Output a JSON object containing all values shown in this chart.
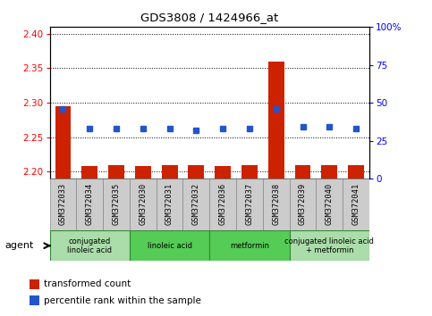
{
  "title": "GDS3808 / 1424966_at",
  "samples": [
    "GSM372033",
    "GSM372034",
    "GSM372035",
    "GSM372030",
    "GSM372031",
    "GSM372032",
    "GSM372036",
    "GSM372037",
    "GSM372038",
    "GSM372039",
    "GSM372040",
    "GSM372041"
  ],
  "transformed_count": [
    2.295,
    2.208,
    2.21,
    2.208,
    2.209,
    2.209,
    2.208,
    2.21,
    2.36,
    2.209,
    2.21,
    2.209
  ],
  "percentile_rank": [
    46,
    33,
    33,
    33,
    33,
    32,
    33,
    33,
    46,
    34,
    34,
    33
  ],
  "ylim_left": [
    2.19,
    2.41
  ],
  "ylim_right": [
    0,
    100
  ],
  "yticks_left": [
    2.2,
    2.25,
    2.3,
    2.35,
    2.4
  ],
  "yticks_right": [
    0,
    25,
    50,
    75,
    100
  ],
  "groups": [
    {
      "label": "conjugated\nlinoleic acid",
      "start": 0,
      "end": 3,
      "color": "#aaddaa"
    },
    {
      "label": "linoleic acid",
      "start": 3,
      "end": 6,
      "color": "#55cc55"
    },
    {
      "label": "metformin",
      "start": 6,
      "end": 9,
      "color": "#55cc55"
    },
    {
      "label": "conjugated linoleic acid\n+ metformin",
      "start": 9,
      "end": 12,
      "color": "#aaddaa"
    }
  ],
  "bar_color": "#cc2200",
  "dot_color": "#2255cc",
  "grid_color": "#000000",
  "bg_color": "#ffffff",
  "sample_bg": "#cccccc",
  "group_border": "#338833"
}
